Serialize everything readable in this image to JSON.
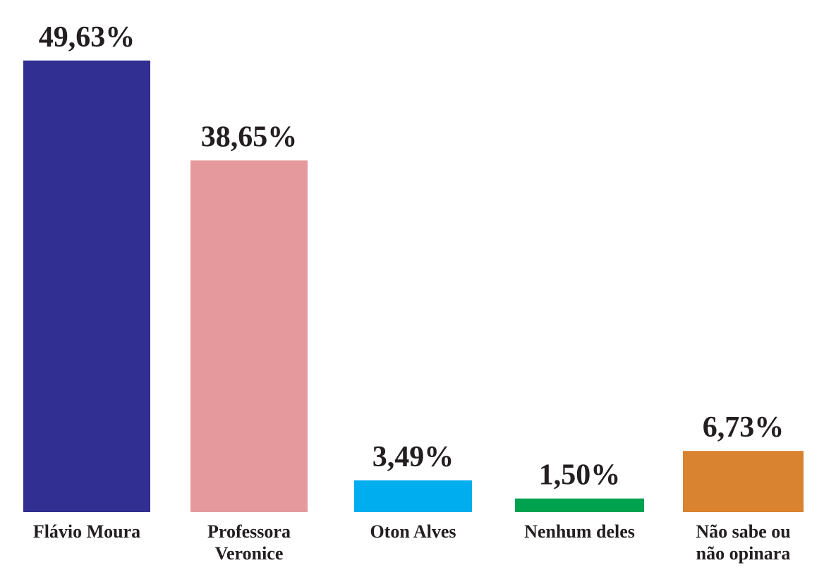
{
  "chart_data": {
    "type": "bar",
    "title": "",
    "xlabel": "",
    "ylabel": "",
    "ylim": [
      0,
      50
    ],
    "grid": false,
    "legend": "none",
    "categories": [
      [
        "Flávio Moura"
      ],
      [
        "Professora",
        "Veronice"
      ],
      [
        "Oton Alves"
      ],
      [
        "Nenhum deles"
      ],
      [
        "Não sabe ou",
        "não opinara"
      ]
    ],
    "values": [
      49.63,
      38.65,
      3.49,
      1.5,
      6.73
    ],
    "value_labels": [
      "49,63%",
      "38,65%",
      "3,49%",
      "1,50%",
      "6,73%"
    ],
    "colors": [
      "#312f91",
      "#e5999c",
      "#00adee",
      "#00a14f",
      "#d9822f"
    ]
  }
}
